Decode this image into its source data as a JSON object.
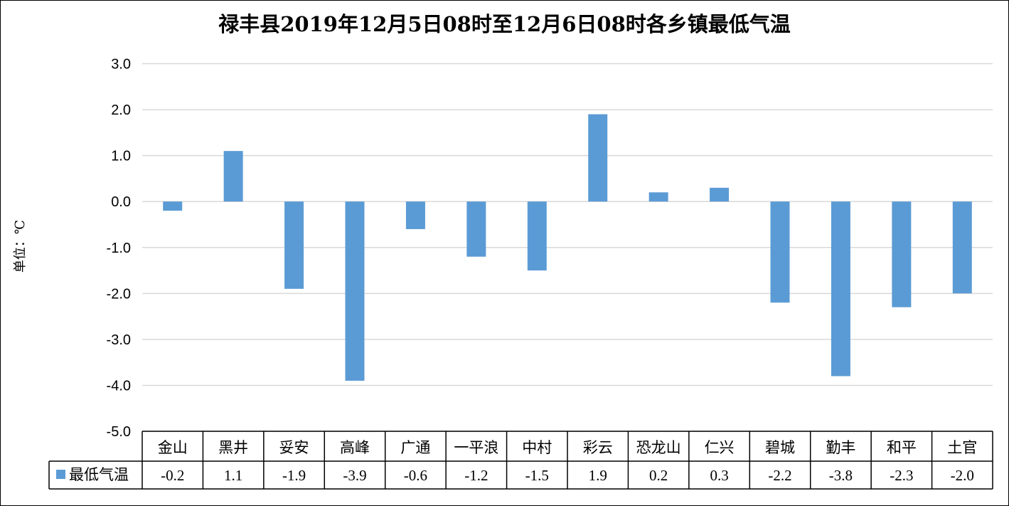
{
  "chart_data": {
    "type": "bar",
    "title": "禄丰县2019年12月5日08时至12月6日08时各乡镇最低气温",
    "ylabel": "单位：℃",
    "categories": [
      "金山",
      "黑井",
      "妥安",
      "高峰",
      "广通",
      "一平浪",
      "中村",
      "彩云",
      "恐龙山",
      "仁兴",
      "碧城",
      "勤丰",
      "和平",
      "土官"
    ],
    "series": [
      {
        "name": "最低气温",
        "values": [
          -0.2,
          1.1,
          -1.9,
          -3.9,
          -0.6,
          -1.2,
          -1.5,
          1.9,
          0.2,
          0.3,
          -2.2,
          -3.8,
          -2.3,
          -2.0
        ],
        "value_labels": [
          "-0.2",
          "1.1",
          "-1.9",
          "-3.9",
          "-0.6",
          "-1.2",
          "-1.5",
          "1.9",
          "0.2",
          "0.3",
          "-2.2",
          "-3.8",
          "-2.3",
          "-2.0"
        ],
        "color": "#5b9bd5"
      }
    ],
    "ylim": [
      -5.0,
      3.0
    ],
    "yticks": [
      3.0,
      2.0,
      1.0,
      0.0,
      -1.0,
      -2.0,
      -3.0,
      -4.0,
      -5.0
    ],
    "ytick_labels": [
      "3.0",
      "2.0",
      "1.0",
      "0.0",
      "-1.0",
      "-2.0",
      "-3.0",
      "-4.0",
      "-5.0"
    ],
    "grid": true,
    "gridline_color": "#d9d9d9",
    "legend": "data-table-left"
  }
}
